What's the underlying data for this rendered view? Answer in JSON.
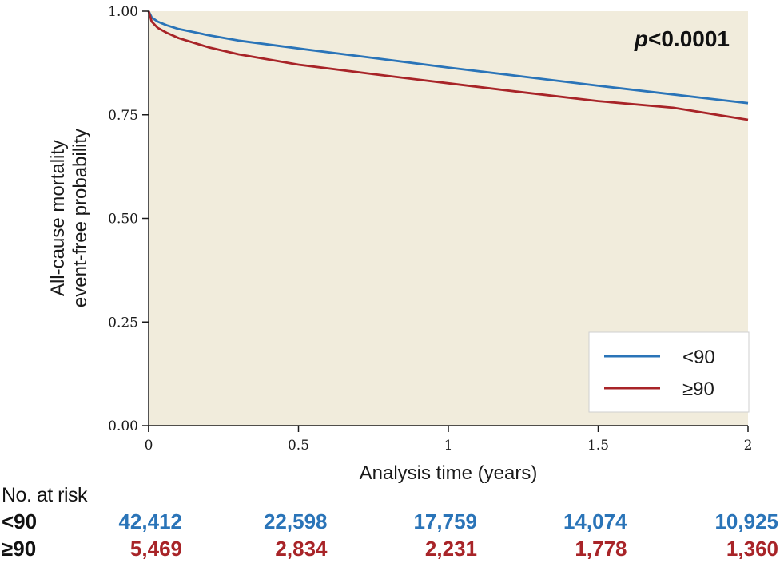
{
  "colors": {
    "plot_background": "#f1ecdc",
    "series_lt90": "#2a74b8",
    "series_ge90": "#a82428",
    "axis": "#1a1a1a"
  },
  "chart_data": {
    "type": "line",
    "xlabel": "Analysis time (years)",
    "ylabel_lines": [
      "All-cause mortality",
      "event-free probability"
    ],
    "xlim": [
      0,
      2
    ],
    "ylim": [
      0,
      1
    ],
    "x_ticks": [
      0,
      0.5,
      1,
      1.5,
      2
    ],
    "x_tick_labels": [
      "0",
      "0.5",
      "1",
      "1.5",
      "2"
    ],
    "y_ticks": [
      0,
      0.25,
      0.5,
      0.75,
      1
    ],
    "y_tick_labels": [
      "0.00",
      "0.25",
      "0.50",
      "0.75",
      "1.00"
    ],
    "grid": false,
    "legend_position": "bottom-right",
    "annotation": {
      "italic": "p",
      "text": "<0.0001",
      "position": "top-right"
    },
    "series": [
      {
        "name": "<90",
        "color": "#2a74b8",
        "x": [
          0,
          0.01,
          0.03,
          0.06,
          0.1,
          0.2,
          0.3,
          0.5,
          0.75,
          1.0,
          1.25,
          1.5,
          1.75,
          2.0
        ],
        "y": [
          1.0,
          0.985,
          0.975,
          0.966,
          0.957,
          0.942,
          0.929,
          0.91,
          0.887,
          0.864,
          0.842,
          0.82,
          0.799,
          0.778
        ]
      },
      {
        "name": "≥90",
        "color": "#a82428",
        "x": [
          0,
          0.01,
          0.03,
          0.06,
          0.1,
          0.2,
          0.3,
          0.5,
          0.75,
          1.0,
          1.25,
          1.5,
          1.75,
          2.0
        ],
        "y": [
          1.0,
          0.975,
          0.96,
          0.948,
          0.935,
          0.913,
          0.896,
          0.871,
          0.848,
          0.826,
          0.804,
          0.783,
          0.767,
          0.738
        ]
      }
    ]
  },
  "risk_table": {
    "title": "No. at risk",
    "rows": [
      {
        "label": "<90",
        "color": "#2a74b8",
        "values": [
          "42,412",
          "22,598",
          "17,759",
          "14,074",
          "10,925"
        ]
      },
      {
        "label": "≥90",
        "color": "#a82428",
        "values": [
          "5,469",
          "2,834",
          "2,231",
          "1,778",
          "1,360"
        ]
      }
    ]
  }
}
